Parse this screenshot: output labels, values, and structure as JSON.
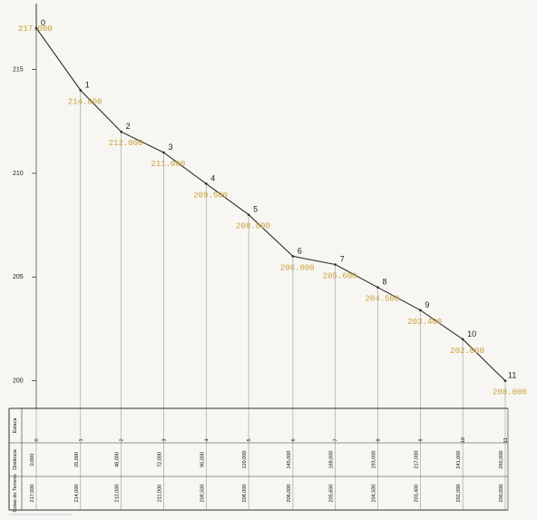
{
  "chart_data": {
    "type": "line",
    "title": "",
    "xlabel": "",
    "ylabel": "",
    "ylim": [
      199.5,
      218.0
    ],
    "ticks": [
      "215",
      "210",
      "205",
      "200"
    ],
    "tick_values": [
      215,
      210,
      205,
      200
    ],
    "series": [
      {
        "name": "",
        "points": [
          {
            "label": "0",
            "distance": 0.0,
            "elevation": 217.0,
            "text": "217.000"
          },
          {
            "label": "1",
            "distance": 25.0,
            "elevation": 214.0,
            "text": "214.000"
          },
          {
            "label": "2",
            "distance": 48.0,
            "elevation": 212.0,
            "text": "212.000"
          },
          {
            "label": "3",
            "distance": 72.0,
            "elevation": 211.0,
            "text": "211.000"
          },
          {
            "label": "4",
            "distance": 96.0,
            "elevation": 209.5,
            "text": "209.500"
          },
          {
            "label": "5",
            "distance": 120.0,
            "elevation": 208.0,
            "text": "208.000"
          },
          {
            "label": "6",
            "distance": 145.0,
            "elevation": 206.0,
            "text": "206.000"
          },
          {
            "label": "7",
            "distance": 169.0,
            "elevation": 205.6,
            "text": "205.600"
          },
          {
            "label": "8",
            "distance": 193.0,
            "elevation": 204.5,
            "text": "204.500"
          },
          {
            "label": "9",
            "distance": 217.0,
            "elevation": 203.4,
            "text": "203.400"
          },
          {
            "label": "10",
            "distance": 241.0,
            "elevation": 202.0,
            "text": "202.000"
          },
          {
            "label": "11",
            "distance": 265.0,
            "elevation": 200.0,
            "text": "200.000"
          }
        ]
      }
    ],
    "table": {
      "row_headers": [
        "Estaca",
        "Distância",
        "Cotas do Terreno"
      ],
      "stations": [
        "0",
        "1",
        "2",
        "3",
        "4",
        "5",
        "6",
        "7",
        "8",
        "9",
        "10",
        "11"
      ],
      "distances": [
        "0,000",
        "25,000",
        "48,000",
        "72,000",
        "96,000",
        "120,000",
        "145,000",
        "169,000",
        "193,000",
        "217,000",
        "241,000",
        "265,000"
      ],
      "elevations": [
        "217,000",
        "214,000",
        "212,000",
        "211,000",
        "209,500",
        "208,000",
        "206,000",
        "205,600",
        "204,500",
        "203,400",
        "202,000",
        "200,000"
      ]
    }
  },
  "colors": {
    "line": "#2b2b2b",
    "elevation_label": "#c9a23a",
    "grid": "#9a9a9a",
    "background": "#f7f6f2"
  }
}
